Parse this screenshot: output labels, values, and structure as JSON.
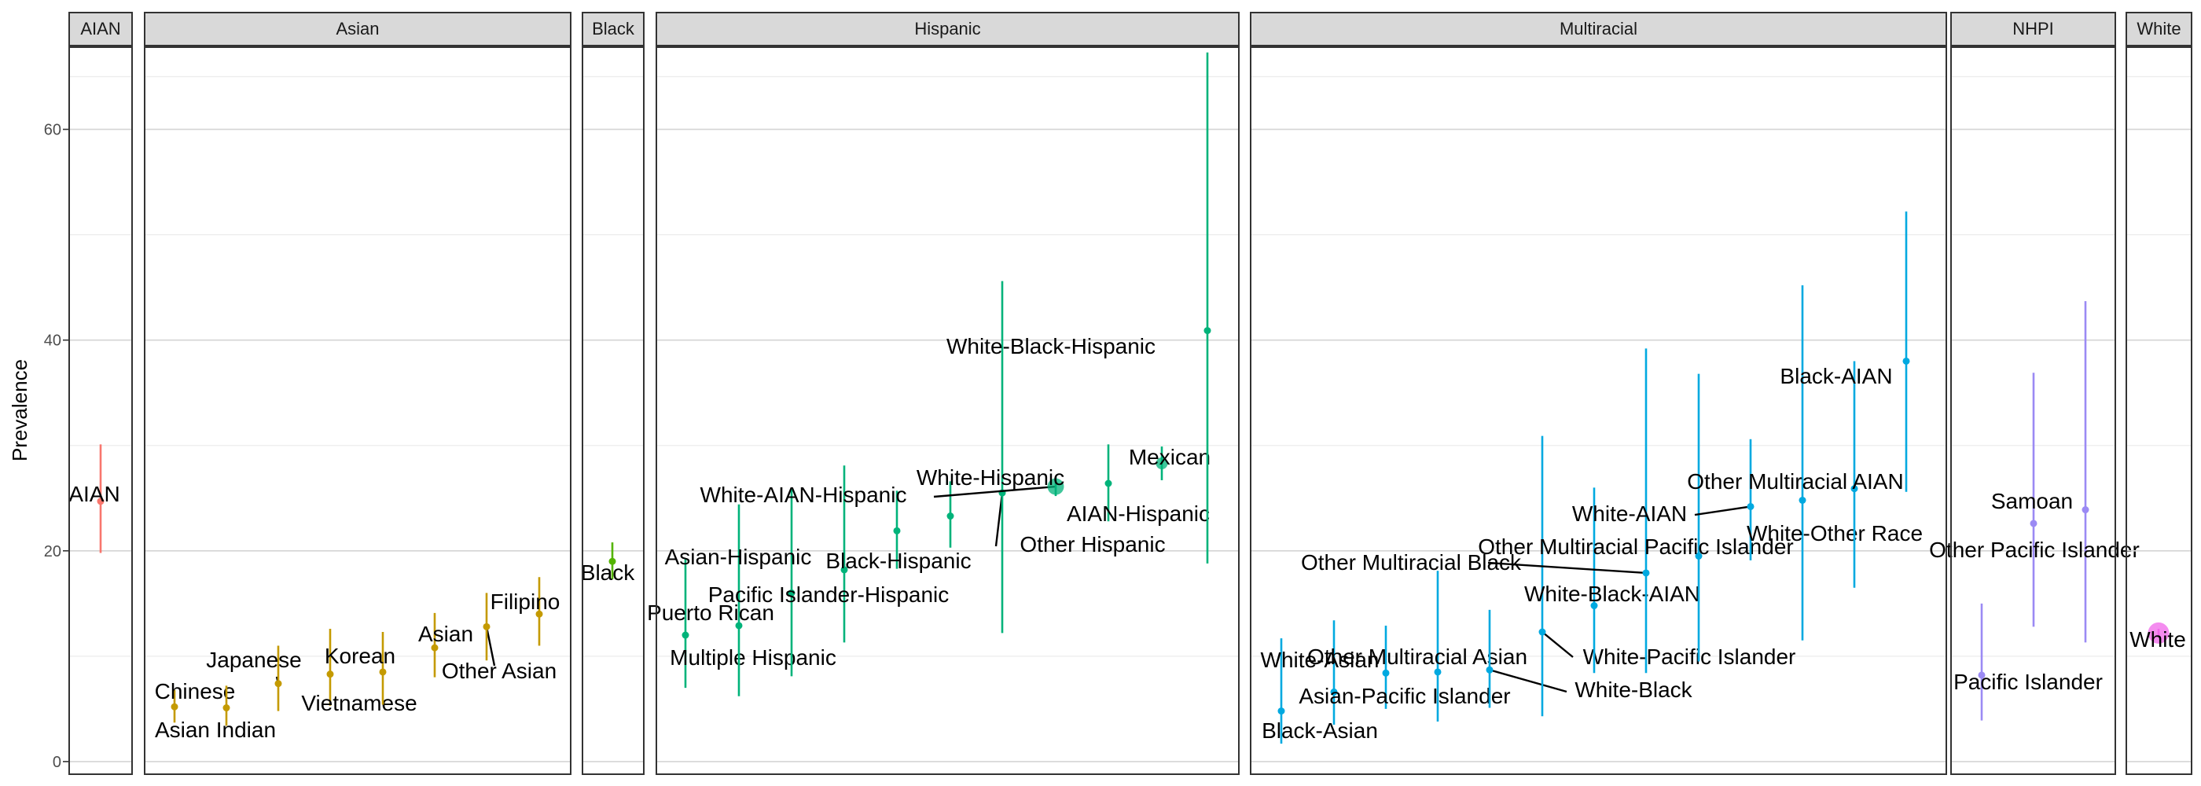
{
  "chart_data": {
    "type": "scatter",
    "title": "",
    "xlabel": "",
    "ylabel": "Prevalence",
    "ylim": [
      -1.2,
      67.8
    ],
    "yticks": [
      0,
      20,
      40,
      60
    ],
    "grid": true,
    "legend": "none",
    "panels": [
      {
        "name": "AIAN",
        "color": "#F8766D",
        "points": [
          {
            "label": "AIAN",
            "y": 24.7,
            "lo": 19.8,
            "hi": 30.1,
            "size": 1
          }
        ]
      },
      {
        "name": "Asian",
        "color": "#C49A00",
        "points": [
          {
            "label": "Chinese",
            "y": 5.2,
            "lo": 3.7,
            "hi": 6.8,
            "size": 1
          },
          {
            "label": "Asian Indian",
            "y": 5.1,
            "lo": 3.4,
            "hi": 7.2,
            "size": 1
          },
          {
            "label": "Japanese",
            "y": 7.4,
            "lo": 4.8,
            "hi": 11.0,
            "size": 1
          },
          {
            "label": "Vietnamese",
            "y": 8.3,
            "lo": 5.3,
            "hi": 12.6,
            "size": 1
          },
          {
            "label": "Korean",
            "y": 8.5,
            "lo": 5.4,
            "hi": 12.3,
            "size": 1
          },
          {
            "label": "Asian",
            "y": 10.8,
            "lo": 8.0,
            "hi": 14.1,
            "size": 1
          },
          {
            "label": "Other Asian",
            "y": 12.8,
            "lo": 9.6,
            "hi": 16.0,
            "size": 1
          },
          {
            "label": "Filipino",
            "y": 14.0,
            "lo": 11.0,
            "hi": 17.5,
            "size": 1
          }
        ]
      },
      {
        "name": "Black",
        "color": "#53B400",
        "points": [
          {
            "label": "Black",
            "y": 19.0,
            "lo": 17.3,
            "hi": 20.8,
            "size": 1
          }
        ]
      },
      {
        "name": "Hispanic",
        "color": "#00B37A",
        "points": [
          {
            "label": "Multiple Hispanic",
            "y": 12.0,
            "lo": 7.0,
            "hi": 19.2,
            "size": 1
          },
          {
            "label": "Puerto Rican",
            "y": 12.9,
            "lo": 6.2,
            "hi": 24.4,
            "size": 1
          },
          {
            "label": "Asian-Hispanic",
            "y": 16.0,
            "lo": 8.1,
            "hi": 25.9,
            "size": 1
          },
          {
            "label": "Pacific Islander-Hispanic",
            "y": 18.2,
            "lo": 11.3,
            "hi": 28.1,
            "size": 1
          },
          {
            "label": "Black-Hispanic",
            "y": 21.9,
            "lo": 18.3,
            "hi": 25.7,
            "size": 1
          },
          {
            "label": "Other Hispanic",
            "y": 23.3,
            "lo": 20.3,
            "hi": 26.6,
            "size": 1
          },
          {
            "label": "White-AIAN-Hispanic",
            "y": 25.5,
            "lo": 12.2,
            "hi": 45.6,
            "size": 1
          },
          {
            "label": "White-Hispanic",
            "y": 26.1,
            "lo": 25.2,
            "hi": 27.0,
            "size": 3
          },
          {
            "label": "AIAN-Hispanic",
            "y": 26.4,
            "lo": 22.8,
            "hi": 30.1,
            "size": 1
          },
          {
            "label": "Mexican",
            "y": 28.3,
            "lo": 26.7,
            "hi": 29.9,
            "size": 2
          },
          {
            "label": "White-Black-Hispanic",
            "y": 40.9,
            "lo": 18.8,
            "hi": 67.3,
            "size": 1
          }
        ]
      },
      {
        "name": "Multiracial",
        "color": "#00A9E0",
        "points": [
          {
            "label": "Black-Asian",
            "y": 4.8,
            "lo": 1.7,
            "hi": 11.7,
            "size": 1
          },
          {
            "label": "White-Asian",
            "y": 6.6,
            "lo": 3.5,
            "hi": 13.4,
            "size": 1
          },
          {
            "label": "Asian-Pacific Islander",
            "y": 8.4,
            "lo": 5.0,
            "hi": 12.9,
            "size": 1
          },
          {
            "label": "Other Multiracial Asian",
            "y": 8.5,
            "lo": 3.8,
            "hi": 18.1,
            "size": 1
          },
          {
            "label": "White-Black",
            "y": 8.7,
            "lo": 5.1,
            "hi": 14.4,
            "size": 1
          },
          {
            "label": "White-Pacific Islander",
            "y": 12.3,
            "lo": 4.3,
            "hi": 30.9,
            "size": 1
          },
          {
            "label": "White-Black-AIAN",
            "y": 14.8,
            "lo": 8.4,
            "hi": 26.0,
            "size": 1
          },
          {
            "label": "Other Multiracial Black",
            "y": 17.9,
            "lo": 8.4,
            "hi": 39.2,
            "size": 1
          },
          {
            "label": "Other Multiracial Pacific Islander",
            "y": 19.5,
            "lo": 9.5,
            "hi": 36.8,
            "size": 1
          },
          {
            "label": "White-AIAN",
            "y": 24.2,
            "lo": 19.1,
            "hi": 30.6,
            "size": 1
          },
          {
            "label": "White-Other Race",
            "y": 24.8,
            "lo": 11.5,
            "hi": 45.2,
            "size": 1
          },
          {
            "label": "Other Multiracial AIAN",
            "y": 25.9,
            "lo": 16.5,
            "hi": 38.0,
            "size": 1
          },
          {
            "label": "Black-AIAN",
            "y": 38.0,
            "lo": 25.6,
            "hi": 52.2,
            "size": 1
          }
        ]
      },
      {
        "name": "NHPI",
        "color": "#9B8AF4",
        "points": [
          {
            "label": "Pacific Islander",
            "y": 8.2,
            "lo": 3.9,
            "hi": 15.0,
            "size": 1
          },
          {
            "label": "Samoan",
            "y": 22.6,
            "lo": 12.8,
            "hi": 36.9,
            "size": 1
          },
          {
            "label": "Other Pacific Islander",
            "y": 23.9,
            "lo": 11.3,
            "hi": 43.7,
            "size": 1
          }
        ]
      },
      {
        "name": "White",
        "color": "#F066EA",
        "points": [
          {
            "label": "White",
            "y": 12.2,
            "lo": 11.8,
            "hi": 12.6,
            "size": 4
          }
        ]
      }
    ]
  }
}
